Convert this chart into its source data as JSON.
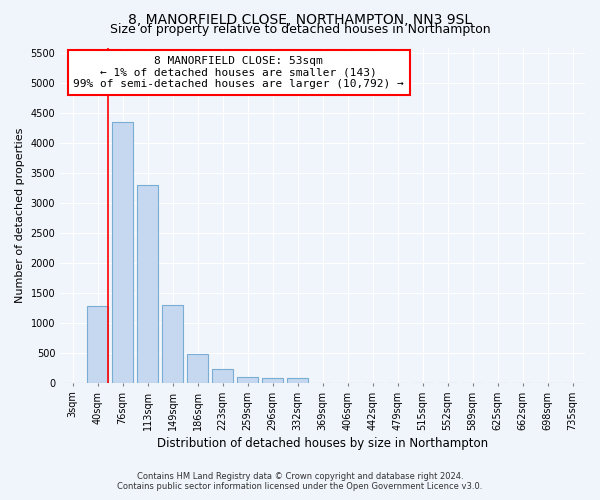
{
  "title": "8, MANORFIELD CLOSE, NORTHAMPTON, NN3 9SL",
  "subtitle": "Size of property relative to detached houses in Northampton",
  "xlabel": "Distribution of detached houses by size in Northampton",
  "ylabel": "Number of detached properties",
  "footer_line1": "Contains HM Land Registry data © Crown copyright and database right 2024.",
  "footer_line2": "Contains public sector information licensed under the Open Government Licence v3.0.",
  "bin_labels": [
    "3sqm",
    "40sqm",
    "76sqm",
    "113sqm",
    "149sqm",
    "186sqm",
    "223sqm",
    "259sqm",
    "296sqm",
    "332sqm",
    "369sqm",
    "406sqm",
    "442sqm",
    "479sqm",
    "515sqm",
    "552sqm",
    "589sqm",
    "625sqm",
    "662sqm",
    "698sqm",
    "735sqm"
  ],
  "bar_values": [
    0,
    1280,
    4350,
    3300,
    1300,
    490,
    240,
    100,
    80,
    75,
    0,
    0,
    0,
    0,
    0,
    0,
    0,
    0,
    0,
    0,
    0
  ],
  "bar_color": "#c5d8f0",
  "bar_edge_color": "#7aadd4",
  "red_line_x": 1.42,
  "annotation_box_text": "8 MANORFIELD CLOSE: 53sqm\n← 1% of detached houses are smaller (143)\n99% of semi-detached houses are larger (10,792) →",
  "ylim": [
    0,
    5600
  ],
  "yticks": [
    0,
    500,
    1000,
    1500,
    2000,
    2500,
    3000,
    3500,
    4000,
    4500,
    5000,
    5500
  ],
  "bg_color": "#f0f4fb",
  "plot_bg_color": "#f0f4fb",
  "grid_color": "#ffffff",
  "title_fontsize": 10,
  "subtitle_fontsize": 9,
  "tick_fontsize": 7,
  "ylabel_fontsize": 8,
  "xlabel_fontsize": 8.5,
  "footer_fontsize": 6,
  "annot_fontsize": 8
}
